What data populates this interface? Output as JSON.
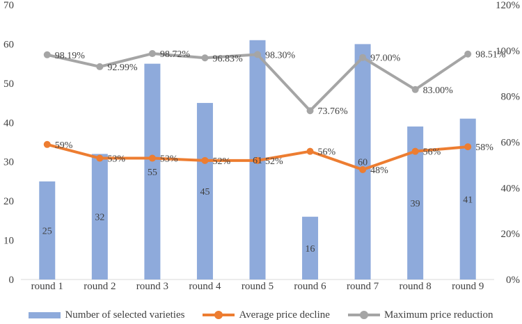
{
  "chart_data": {
    "type": "bar+line",
    "categories": [
      "round 1",
      "round 2",
      "round 3",
      "round 4",
      "round 5",
      "round 6",
      "round 7",
      "round 8",
      "round 9"
    ],
    "bars": {
      "name": "Number of selected varieties",
      "values": [
        25,
        32,
        55,
        45,
        61,
        16,
        60,
        39,
        41
      ],
      "labels": [
        "25",
        "32",
        "55",
        "45",
        "61",
        "16",
        "60",
        "39",
        "41"
      ],
      "color": "#8eaadb"
    },
    "lines": [
      {
        "name": "Average price decline",
        "values": [
          59,
          53,
          53,
          52,
          52,
          56,
          48,
          56,
          58
        ],
        "labels": [
          "59%",
          "53%",
          "53%",
          "52%",
          "52%",
          "56%",
          "48%",
          "56%",
          "58%"
        ],
        "color": "#ed7d31"
      },
      {
        "name": "Maximum price reduction",
        "values": [
          98.19,
          92.99,
          98.72,
          96.83,
          98.3,
          73.76,
          97.0,
          83.0,
          98.51
        ],
        "labels": [
          "98.19%",
          "92.99%",
          "98.72%",
          "96.83%",
          "98.30%",
          "73.76%",
          "97.00%",
          "83.00%",
          "98.51%"
        ],
        "color": "#a5a5a5"
      }
    ],
    "y_left": {
      "min": 0,
      "max": 70,
      "ticks": [
        "0",
        "10",
        "20",
        "30",
        "40",
        "50",
        "60",
        "70"
      ]
    },
    "y_right": {
      "min": 0,
      "max": 120,
      "ticks": [
        "0%",
        "20%",
        "40%",
        "60%",
        "80%",
        "100%",
        "120%"
      ]
    },
    "grid": false,
    "legend_position": "bottom"
  }
}
